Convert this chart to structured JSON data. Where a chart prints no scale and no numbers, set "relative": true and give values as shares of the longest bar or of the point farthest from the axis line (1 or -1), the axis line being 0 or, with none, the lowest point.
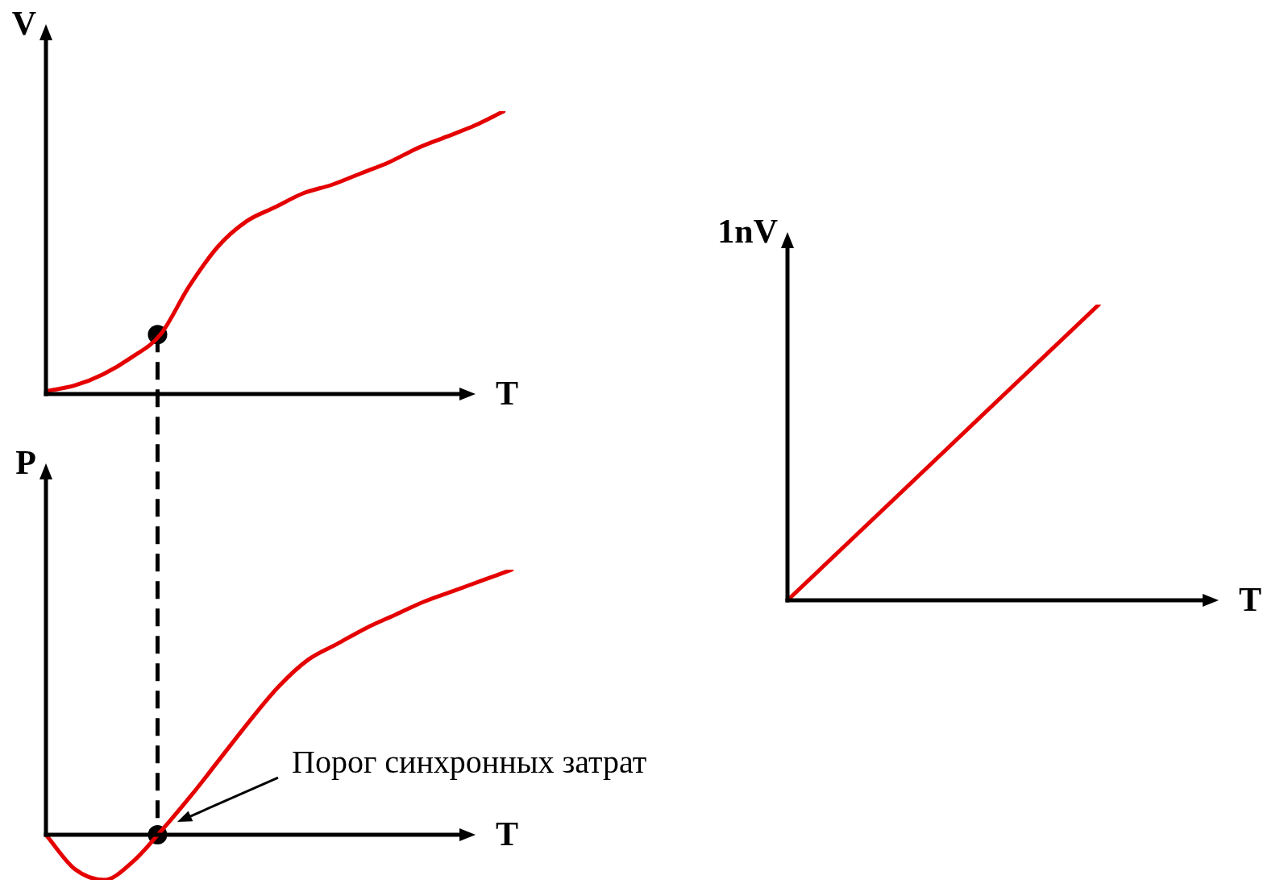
{
  "chart_data": [
    {
      "type": "line",
      "xlabel": "T",
      "ylabel": "V",
      "relative": true,
      "tick_labels": false,
      "marker": "none",
      "line_style": "solid",
      "categories": [
        null,
        null,
        null,
        null,
        null,
        null,
        null,
        null,
        null,
        null,
        null,
        null,
        null,
        null,
        null,
        null,
        null
      ],
      "series": [
        {
          "color": "#e50000",
          "values": [
            0.01,
            0.03,
            0.07,
            0.13,
            0.21,
            0.38,
            0.52,
            0.61,
            0.66,
            0.71,
            0.74,
            0.78,
            0.82,
            0.87,
            0.91,
            0.95,
            1
          ]
        }
      ]
    },
    {
      "type": "line",
      "xlabel": "T",
      "ylabel": "P",
      "relative": true,
      "tick_labels": false,
      "marker": "none",
      "line_style": "solid",
      "categories": [
        null,
        null,
        null,
        null,
        null,
        null,
        null,
        null,
        null,
        null,
        null,
        null,
        null,
        null,
        null,
        null,
        null
      ],
      "series": [
        {
          "color": "#e50000",
          "values": [
            0,
            -0.13,
            -0.17,
            -0.1,
            0.02,
            0.15,
            0.29,
            0.43,
            0.56,
            0.66,
            0.72,
            0.78,
            0.83,
            0.88,
            0.92,
            0.96,
            1
          ]
        }
      ],
      "annotations": [
        "Порог синхронных затрат"
      ]
    },
    {
      "type": "line",
      "xlabel": "T",
      "ylabel": "1nV",
      "relative": true,
      "tick_labels": false,
      "marker": "none",
      "line_style": "solid",
      "categories": [
        null,
        null,
        null,
        null,
        null
      ],
      "series": [
        {
          "color": "#e50000",
          "values": [
            0,
            0.333,
            0.667,
            1,
            null
          ]
        }
      ]
    }
  ]
}
